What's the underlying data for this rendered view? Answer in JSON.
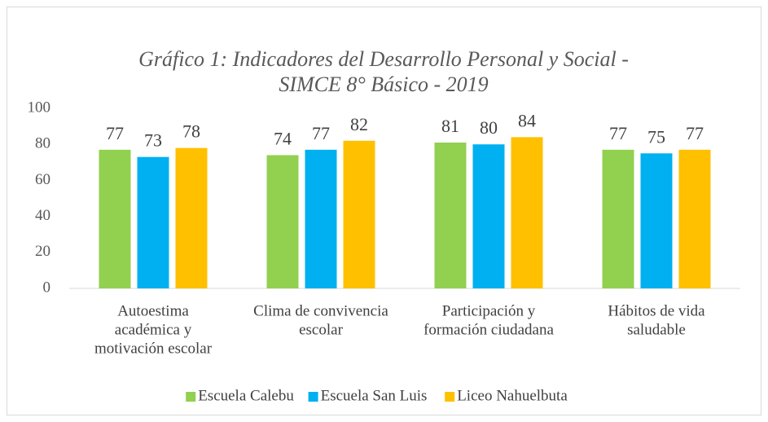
{
  "chart_data": {
    "type": "bar",
    "title": [
      "Gráfico 1: Indicadores del Desarrollo Personal y Social -",
      "SIMCE 8° Básico - 2019"
    ],
    "categories": [
      [
        "Autoestima",
        "académica y",
        "motivación escolar"
      ],
      [
        "Clima de convivencia",
        "escolar"
      ],
      [
        "Participación y",
        "formación ciudadana"
      ],
      [
        "Hábitos de vida",
        "saludable"
      ]
    ],
    "series": [
      {
        "name": "Escuela Calebu",
        "color": "#92d050",
        "values": [
          77,
          74,
          81,
          77
        ]
      },
      {
        "name": "Escuela San Luis",
        "color": "#00b0f0",
        "values": [
          73,
          77,
          80,
          75
        ]
      },
      {
        "name": "Liceo Nahuelbuta",
        "color": "#ffc000",
        "values": [
          78,
          82,
          84,
          77
        ]
      }
    ],
    "ylim": [
      0,
      100
    ],
    "yticks": [
      0,
      20,
      40,
      60,
      80,
      100
    ],
    "grid": false,
    "legend": "bottom"
  }
}
